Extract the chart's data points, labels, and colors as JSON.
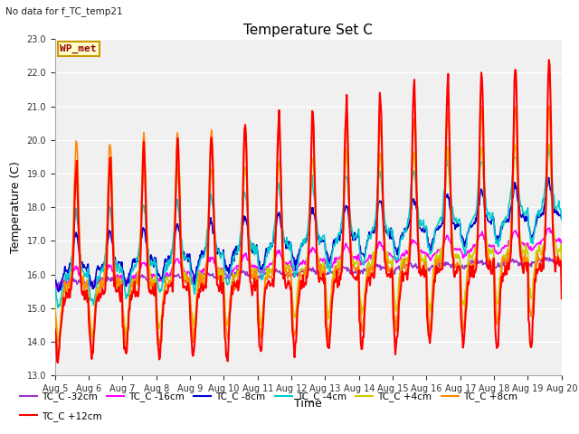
{
  "title": "Temperature Set C",
  "subtitle": "No data for f_TC_temp21",
  "xlabel": "Time",
  "ylabel": "Temperature (C)",
  "ylim": [
    13.0,
    23.0
  ],
  "yticks": [
    13.0,
    14.0,
    15.0,
    16.0,
    17.0,
    18.0,
    19.0,
    20.0,
    21.0,
    22.0,
    23.0
  ],
  "date_start": 5,
  "date_end": 20,
  "fig_bg_color": "#ffffff",
  "plot_bg_color": "#f0f0f0",
  "series_colors": {
    "TC_C -32cm": "#9933cc",
    "TC_C -16cm": "#ff00ff",
    "TC_C -8cm": "#0000cc",
    "TC_C -4cm": "#00cccc",
    "TC_C +4cm": "#cccc00",
    "TC_C +8cm": "#ff8800",
    "TC_C +12cm": "#ff0000"
  },
  "wp_met_box": {
    "text": "WP_met",
    "facecolor": "#ffffcc",
    "edgecolor": "#cc9900",
    "textcolor": "#990000",
    "fontsize": 8
  }
}
